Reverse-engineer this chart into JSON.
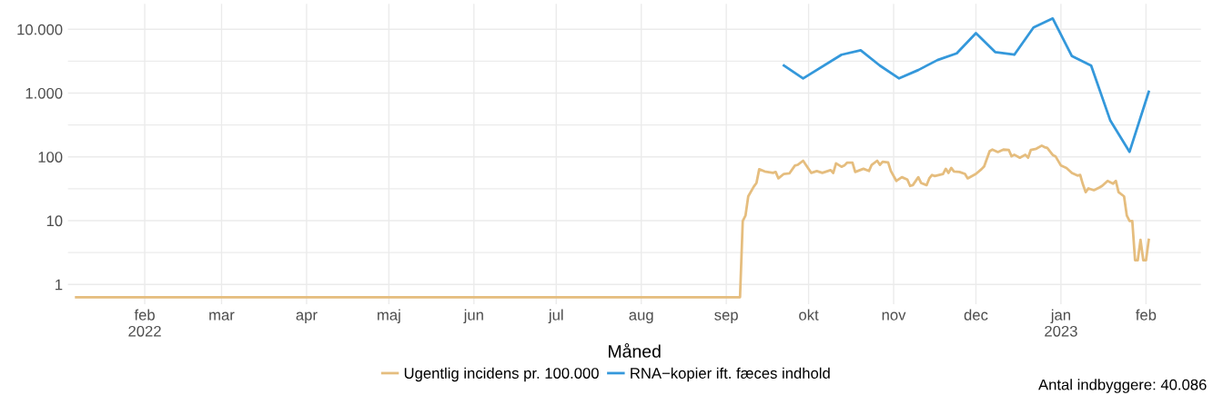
{
  "chart_data": {
    "type": "line",
    "xlabel": "Måned",
    "log": "y",
    "grid": true,
    "legend": "bottom",
    "line_style": "solid",
    "marker": "none",
    "xlim": [
      "2022-01-04",
      "2023-02-21"
    ],
    "xticks": [
      {
        "value": "2022-02-01",
        "label": "feb\n2022"
      },
      {
        "value": "2022-03-01",
        "label": "mar"
      },
      {
        "value": "2022-04-01",
        "label": "apr"
      },
      {
        "value": "2022-05-01",
        "label": "maj"
      },
      {
        "value": "2022-06-01",
        "label": "jun"
      },
      {
        "value": "2022-07-01",
        "label": "jul"
      },
      {
        "value": "2022-08-01",
        "label": "aug"
      },
      {
        "value": "2022-09-01",
        "label": "sep"
      },
      {
        "value": "2022-10-01",
        "label": "okt"
      },
      {
        "value": "2022-11-01",
        "label": "nov"
      },
      {
        "value": "2022-12-01",
        "label": "dec"
      },
      {
        "value": "2023-01-01",
        "label": "jan\n2023"
      },
      {
        "value": "2023-02-01",
        "label": "feb"
      }
    ],
    "ylim": [
      0.49,
      25000
    ],
    "yticks": [
      {
        "value": 1,
        "label": "1"
      },
      {
        "value": 3.16,
        "label": null
      },
      {
        "value": 10,
        "label": "10"
      },
      {
        "value": 31.6,
        "label": null
      },
      {
        "value": 100,
        "label": "100"
      },
      {
        "value": 316,
        "label": null
      },
      {
        "value": 1000,
        "label": "1.000"
      },
      {
        "value": 3160,
        "label": null
      },
      {
        "value": 10000,
        "label": "10.000"
      }
    ],
    "annotations": [
      "Antal indbyggere: 40.086"
    ],
    "series": [
      {
        "name": "Ugentlig incidens pr. 100.000",
        "color": "#e5bd7e",
        "x": [
          "2022-01-07",
          "2022-09-06",
          "2022-09-07",
          "2022-09-08",
          "2022-09-09",
          "2022-09-11",
          "2022-09-12",
          "2022-09-13",
          "2022-09-15",
          "2022-09-18",
          "2022-09-19",
          "2022-09-20",
          "2022-09-22",
          "2022-09-24",
          "2022-09-26",
          "2022-09-27",
          "2022-09-29",
          "2022-09-30",
          "2022-10-02",
          "2022-10-04",
          "2022-10-06",
          "2022-10-09",
          "2022-10-10",
          "2022-10-11",
          "2022-10-13",
          "2022-10-14",
          "2022-10-15",
          "2022-10-17",
          "2022-10-18",
          "2022-10-21",
          "2022-10-23",
          "2022-10-24",
          "2022-10-26",
          "2022-10-27",
          "2022-10-28",
          "2022-10-30",
          "2022-10-31",
          "2022-11-02",
          "2022-11-04",
          "2022-11-06",
          "2022-11-07",
          "2022-11-08",
          "2022-11-10",
          "2022-11-11",
          "2022-11-13",
          "2022-11-14",
          "2022-11-15",
          "2022-11-16",
          "2022-11-19",
          "2022-11-20",
          "2022-11-21",
          "2022-11-22",
          "2022-11-23",
          "2022-11-25",
          "2022-11-27",
          "2022-11-28",
          "2022-12-01",
          "2022-12-03",
          "2022-12-04",
          "2022-12-06",
          "2022-12-07",
          "2022-12-09",
          "2022-12-11",
          "2022-12-13",
          "2022-12-14",
          "2022-12-15",
          "2022-12-17",
          "2022-12-19",
          "2022-12-20",
          "2022-12-21",
          "2022-12-23",
          "2022-12-25",
          "2022-12-26",
          "2022-12-27",
          "2022-12-29",
          "2022-12-30",
          "2023-01-01",
          "2023-01-03",
          "2023-01-05",
          "2023-01-07",
          "2023-01-08",
          "2023-01-09",
          "2023-01-10",
          "2023-01-11",
          "2023-01-13",
          "2023-01-15",
          "2023-01-16",
          "2023-01-18",
          "2023-01-20",
          "2023-01-21",
          "2023-01-22",
          "2023-01-24",
          "2023-01-25",
          "2023-01-26",
          "2023-01-27",
          "2023-01-28",
          "2023-01-29",
          "2023-01-30",
          "2023-01-31",
          "2023-02-01",
          "2023-02-02"
        ],
        "values": [
          0.63,
          0.63,
          9.9,
          12,
          24,
          34,
          39,
          64,
          59,
          56,
          58,
          46,
          54,
          55,
          73,
          75,
          87,
          75,
          56,
          60,
          56,
          62,
          56,
          79,
          70,
          73,
          81,
          81,
          58,
          65,
          60,
          75,
          87,
          75,
          84,
          82,
          60,
          42,
          48,
          44,
          35,
          36,
          48,
          39,
          36,
          46,
          52,
          50,
          54,
          65,
          56,
          67,
          59,
          58,
          54,
          46,
          54,
          64,
          71,
          123,
          130,
          119,
          130,
          128,
          102,
          108,
          97,
          108,
          97,
          128,
          134,
          150,
          142,
          138,
          107,
          102,
          73,
          67,
          56,
          51,
          52,
          37,
          28,
          32,
          30,
          33,
          35,
          42,
          38,
          42,
          28,
          24,
          12,
          9.9,
          9.9,
          2.4,
          2.4,
          5,
          2.4,
          2.4,
          5
        ]
      },
      {
        "name": "RNA−kopier ift. fæces indhold",
        "color": "#3498db",
        "x": [
          "2022-09-22",
          "2022-09-29",
          "2022-10-13",
          "2022-10-20",
          "2022-10-27",
          "2022-11-03",
          "2022-11-10",
          "2022-11-17",
          "2022-11-24",
          "2022-12-01",
          "2022-12-08",
          "2022-12-15",
          "2022-12-22",
          "2022-12-29",
          "2023-01-05",
          "2023-01-12",
          "2023-01-19",
          "2023-01-26",
          "2023-02-02"
        ],
        "values": [
          2700,
          1700,
          4000,
          4700,
          2700,
          1700,
          2300,
          3300,
          4200,
          8700,
          4400,
          4000,
          10700,
          14800,
          3800,
          2700,
          370,
          120,
          1050
        ]
      }
    ]
  }
}
